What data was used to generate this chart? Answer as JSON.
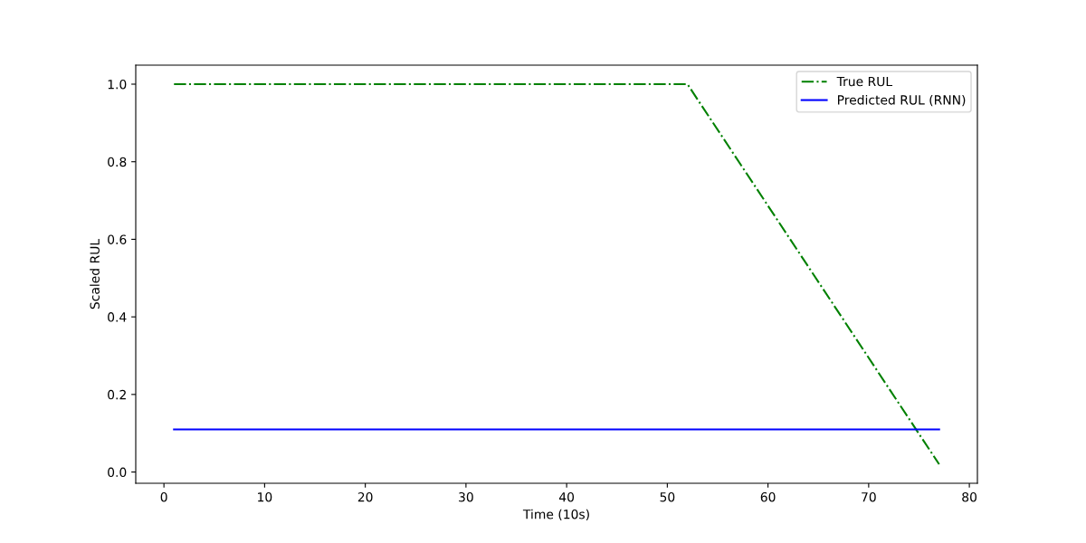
{
  "chart_data": {
    "type": "line",
    "xlabel": "Time (10s)",
    "ylabel": "Scaled RUL",
    "series": [
      {
        "name": "True RUL",
        "color": "#008000",
        "line_style": "dashdot",
        "x": [
          1,
          52,
          77
        ],
        "values": [
          1.0,
          1.0,
          0.02
        ]
      },
      {
        "name": "Predicted RUL (RNN)",
        "color": "#0000ff",
        "line_style": "solid",
        "x": [
          1,
          77
        ],
        "values": [
          0.11,
          0.11
        ]
      }
    ],
    "xlim": [
      -2.8,
      80.8
    ],
    "xticks": [
      0,
      10,
      20,
      30,
      40,
      50,
      60,
      70,
      80
    ],
    "ylim": [
      -0.029,
      1.049
    ],
    "yticks": [
      {
        "value": 0,
        "label": "0.0"
      },
      {
        "value": 0.2,
        "label": "0.2"
      },
      {
        "value": 0.4,
        "label": "0.4"
      },
      {
        "value": 0.6,
        "label": "0.6"
      },
      {
        "value": 0.8,
        "label": "0.8"
      },
      {
        "value": 1.0,
        "label": "1.0"
      }
    ],
    "grid": false,
    "legend": "top right"
  }
}
